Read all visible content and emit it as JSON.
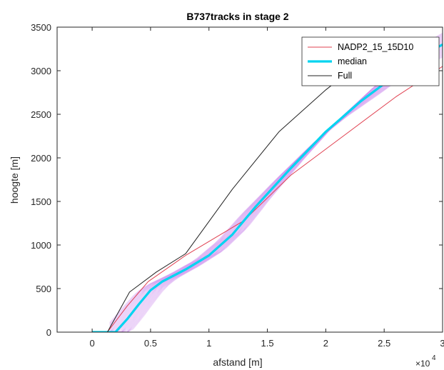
{
  "chart_data": {
    "type": "line",
    "title": "B737tracks in stage 2",
    "xlabel": "afstand [m]",
    "ylabel": "hoogte [m]",
    "xlim": [
      -3000,
      30000
    ],
    "ylim": [
      0,
      3500
    ],
    "x_ticks": [
      0,
      5000,
      10000,
      15000,
      20000,
      25000,
      30000
    ],
    "x_tick_labels": [
      "0",
      "0.5",
      "1",
      "1.5",
      "2",
      "2.5",
      "3"
    ],
    "x_exponent_label": "×10",
    "x_exponent_power": "4",
    "y_ticks": [
      0,
      500,
      1000,
      1500,
      2000,
      2500,
      3000,
      3500
    ],
    "y_tick_labels": [
      "0",
      "500",
      "1000",
      "1500",
      "2000",
      "2500",
      "3000",
      "3500"
    ],
    "grid": false,
    "legend_position": "top-right",
    "series": [
      {
        "name": "NADP2_15_15D10",
        "color": "#e04050",
        "x": [
          -3000,
          1300,
          3000,
          4800,
          8000,
          13000,
          17000,
          22000,
          26000,
          30000
        ],
        "y": [
          0,
          0,
          300,
          580,
          880,
          1280,
          1800,
          2300,
          2700,
          3050
        ]
      },
      {
        "name": "median",
        "color": "#00d4f0",
        "x": [
          0,
          1200,
          2000,
          3000,
          4000,
          5000,
          6000,
          8000,
          10000,
          12000,
          14000,
          17000,
          20000,
          23000,
          26000,
          28000,
          30000
        ],
        "y": [
          0,
          0,
          0,
          150,
          320,
          480,
          580,
          720,
          880,
          1120,
          1440,
          1880,
          2300,
          2650,
          2950,
          3160,
          3300
        ]
      },
      {
        "name": "Full",
        "color": "#222222",
        "x": [
          -3000,
          1300,
          3200,
          5500,
          8000,
          12000,
          16000,
          20000,
          23500
        ],
        "y": [
          0,
          0,
          460,
          690,
          900,
          1640,
          2300,
          2780,
          3150
        ]
      }
    ],
    "tracks_color": "#cc88ee"
  }
}
